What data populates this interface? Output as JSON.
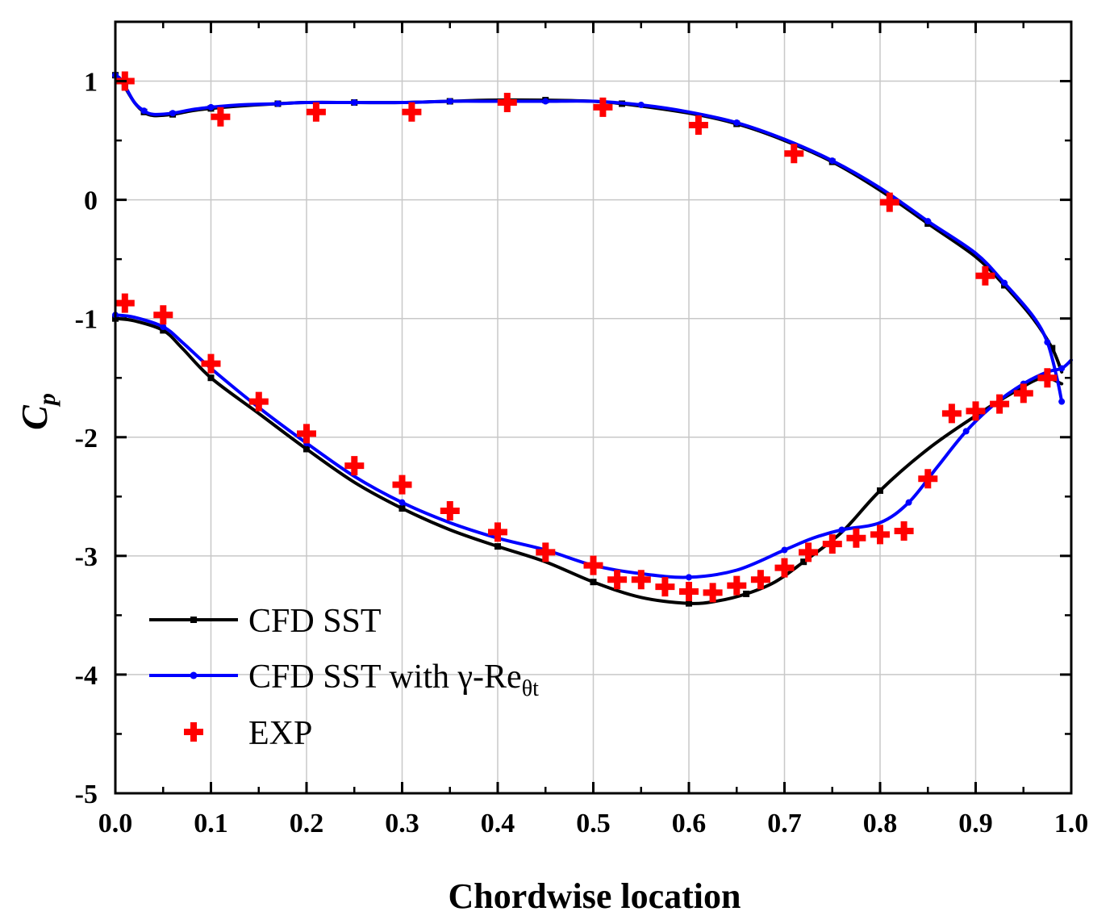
{
  "chart_data": {
    "type": "line",
    "title": "",
    "xlabel": "Chordwise location",
    "ylabel": {
      "main": "C",
      "sub": "p"
    },
    "xlim": [
      0.0,
      1.0
    ],
    "ylim": [
      -5,
      1.5
    ],
    "xticks": [
      0.0,
      0.1,
      0.2,
      0.3,
      0.4,
      0.5,
      0.6,
      0.7,
      0.8,
      0.9,
      1.0
    ],
    "xtick_labels": [
      "0.0",
      "0.1",
      "0.2",
      "0.3",
      "0.4",
      "0.5",
      "0.6",
      "0.7",
      "0.8",
      "0.9",
      "1.0"
    ],
    "yticks": [
      1,
      0,
      -1,
      -2,
      -3,
      -4,
      -5
    ],
    "ytick_labels": [
      "1",
      "0",
      "-1",
      "-2",
      "-3",
      "-4",
      "-5"
    ],
    "grid": true,
    "legend_position": "bottom-left",
    "series": [
      {
        "name": "CFD SST",
        "style": "line-with-small-square-markers",
        "color": "#000000",
        "upper": {
          "x": [
            0.0,
            0.005,
            0.01,
            0.02,
            0.03,
            0.04,
            0.06,
            0.08,
            0.1,
            0.13,
            0.17,
            0.2,
            0.25,
            0.3,
            0.35,
            0.39,
            0.45,
            0.5,
            0.53,
            0.6,
            0.65,
            0.7,
            0.75,
            0.8,
            0.85,
            0.9,
            0.93,
            0.96,
            0.98,
            0.99
          ],
          "y": [
            1.05,
            1.02,
            0.95,
            0.82,
            0.74,
            0.71,
            0.72,
            0.75,
            0.77,
            0.79,
            0.81,
            0.82,
            0.82,
            0.82,
            0.83,
            0.84,
            0.84,
            0.83,
            0.81,
            0.73,
            0.64,
            0.5,
            0.32,
            0.08,
            -0.2,
            -0.48,
            -0.72,
            -1.0,
            -1.25,
            -1.45
          ]
        },
        "lower": {
          "x": [
            0.0,
            0.02,
            0.05,
            0.07,
            0.1,
            0.15,
            0.2,
            0.25,
            0.3,
            0.35,
            0.4,
            0.45,
            0.5,
            0.55,
            0.6,
            0.63,
            0.66,
            0.69,
            0.72,
            0.76,
            0.8,
            0.85,
            0.9,
            0.94,
            0.97,
            0.99
          ],
          "y": [
            -1.0,
            -1.02,
            -1.1,
            -1.25,
            -1.5,
            -1.8,
            -2.1,
            -2.38,
            -2.6,
            -2.78,
            -2.92,
            -3.05,
            -3.22,
            -3.35,
            -3.4,
            -3.38,
            -3.32,
            -3.22,
            -3.05,
            -2.8,
            -2.45,
            -2.1,
            -1.82,
            -1.62,
            -1.5,
            -1.55
          ]
        }
      },
      {
        "name": "CFD SST with γ-Re",
        "name_main": "CFD SST with γ-Re",
        "name_sub": "θt",
        "style": "line-with-small-dot-markers",
        "color": "#0000ff",
        "upper": {
          "x": [
            0.0,
            0.005,
            0.01,
            0.02,
            0.03,
            0.04,
            0.06,
            0.08,
            0.1,
            0.13,
            0.17,
            0.2,
            0.25,
            0.3,
            0.35,
            0.4,
            0.45,
            0.5,
            0.55,
            0.6,
            0.65,
            0.7,
            0.75,
            0.8,
            0.85,
            0.9,
            0.93,
            0.96,
            0.975,
            0.985,
            0.99
          ],
          "y": [
            1.05,
            1.02,
            0.96,
            0.82,
            0.75,
            0.72,
            0.73,
            0.76,
            0.78,
            0.8,
            0.81,
            0.82,
            0.82,
            0.82,
            0.83,
            0.83,
            0.83,
            0.83,
            0.8,
            0.74,
            0.65,
            0.51,
            0.33,
            0.1,
            -0.18,
            -0.45,
            -0.7,
            -0.98,
            -1.2,
            -1.5,
            -1.7
          ]
        },
        "lower": {
          "x": [
            0.0,
            0.02,
            0.05,
            0.07,
            0.1,
            0.15,
            0.2,
            0.25,
            0.3,
            0.35,
            0.4,
            0.45,
            0.5,
            0.55,
            0.6,
            0.65,
            0.7,
            0.73,
            0.76,
            0.8,
            0.83,
            0.86,
            0.89,
            0.92,
            0.95,
            0.975,
            0.99,
            1.0
          ],
          "y": [
            -0.97,
            -0.99,
            -1.07,
            -1.2,
            -1.42,
            -1.75,
            -2.05,
            -2.33,
            -2.55,
            -2.72,
            -2.85,
            -2.95,
            -3.08,
            -3.15,
            -3.18,
            -3.12,
            -2.95,
            -2.85,
            -2.78,
            -2.72,
            -2.55,
            -2.25,
            -1.95,
            -1.72,
            -1.55,
            -1.45,
            -1.42,
            -1.35
          ]
        }
      },
      {
        "name": "EXP",
        "style": "plus-markers",
        "color": "#ff0000",
        "points": {
          "x": [
            0.01,
            0.11,
            0.21,
            0.31,
            0.41,
            0.51,
            0.61,
            0.71,
            0.81,
            0.91,
            0.01,
            0.05,
            0.1,
            0.15,
            0.2,
            0.25,
            0.3,
            0.35,
            0.4,
            0.45,
            0.5,
            0.525,
            0.55,
            0.575,
            0.6,
            0.625,
            0.65,
            0.675,
            0.7,
            0.725,
            0.75,
            0.775,
            0.8,
            0.825,
            0.85,
            0.875,
            0.9,
            0.925,
            0.95,
            0.975
          ],
          "y": [
            1.0,
            0.7,
            0.74,
            0.74,
            0.82,
            0.78,
            0.63,
            0.39,
            -0.02,
            -0.64,
            -0.87,
            -0.97,
            -1.38,
            -1.7,
            -1.97,
            -2.24,
            -2.4,
            -2.62,
            -2.8,
            -2.97,
            -3.08,
            -3.2,
            -3.2,
            -3.26,
            -3.3,
            -3.31,
            -3.25,
            -3.2,
            -3.1,
            -2.97,
            -2.9,
            -2.85,
            -2.82,
            -2.79,
            -2.35,
            -1.8,
            -1.78,
            -1.72,
            -1.63,
            -1.5
          ]
        }
      }
    ]
  }
}
